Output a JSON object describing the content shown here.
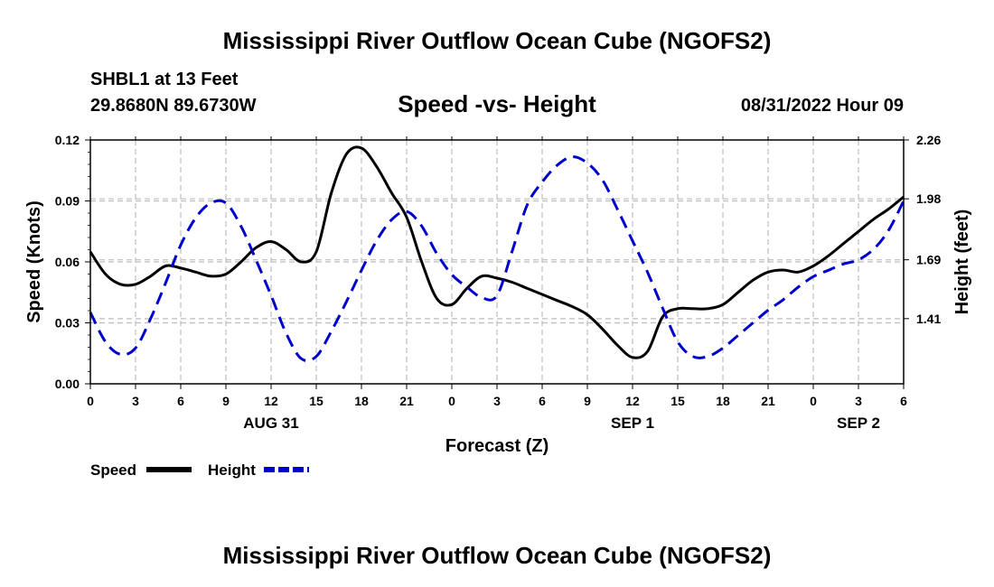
{
  "header": {
    "main_title": "Mississippi River Outflow Ocean Cube (NGOFS2)",
    "station": "SHBL1 at 13 Feet",
    "coords": "29.8680N  89.6730W",
    "subtitle": "Speed -vs- Height",
    "datetime": "08/31/2022 Hour 09"
  },
  "footer": {
    "main_title": "Mississippi River Outflow Ocean Cube (NGOFS2)"
  },
  "legend": {
    "items": [
      {
        "label": "Speed",
        "color": "#000000",
        "dashed": false
      },
      {
        "label": "Height",
        "color": "#0000cc",
        "dashed": true
      }
    ]
  },
  "chart_data": {
    "type": "line",
    "xlabel": "Forecast (Z)",
    "ylabel_left": "Speed (Knots)",
    "ylabel_right": "Height (feet)",
    "x_range_hours": [
      0,
      54
    ],
    "x_ticks": [
      {
        "h": 0,
        "label": "0"
      },
      {
        "h": 3,
        "label": "3"
      },
      {
        "h": 6,
        "label": "6"
      },
      {
        "h": 9,
        "label": "9"
      },
      {
        "h": 12,
        "label": "12"
      },
      {
        "h": 15,
        "label": "15"
      },
      {
        "h": 18,
        "label": "18"
      },
      {
        "h": 21,
        "label": "21"
      },
      {
        "h": 24,
        "label": "0"
      },
      {
        "h": 27,
        "label": "3"
      },
      {
        "h": 30,
        "label": "6"
      },
      {
        "h": 33,
        "label": "9"
      },
      {
        "h": 36,
        "label": "12"
      },
      {
        "h": 39,
        "label": "15"
      },
      {
        "h": 42,
        "label": "18"
      },
      {
        "h": 45,
        "label": "21"
      },
      {
        "h": 48,
        "label": "0"
      },
      {
        "h": 51,
        "label": "3"
      },
      {
        "h": 54,
        "label": "6"
      }
    ],
    "date_labels": [
      {
        "h": 12,
        "label": "AUG 31"
      },
      {
        "h": 36,
        "label": "SEP 1"
      },
      {
        "h": 51,
        "label": "SEP 2"
      }
    ],
    "y_left": {
      "min": 0,
      "max": 0.12,
      "ticks": [
        "0.00",
        "0.03",
        "0.06",
        "0.09",
        "0.12"
      ]
    },
    "y_right": {
      "min": 1.1,
      "max": 2.26,
      "ticks": [
        "1.41",
        "1.69",
        "1.98",
        "2.26"
      ]
    },
    "series": [
      {
        "name": "Speed",
        "axis": "left",
        "color": "#000000",
        "x": [
          0,
          1,
          2,
          3,
          4,
          5,
          6,
          7,
          8,
          9,
          10,
          11,
          12,
          13,
          14,
          15,
          16,
          17,
          18,
          19,
          20,
          21,
          22,
          23,
          24,
          25,
          26,
          27,
          28,
          29,
          30,
          31,
          32,
          33,
          34,
          35,
          36,
          37,
          38,
          39,
          40,
          41,
          42,
          43,
          44,
          45,
          46,
          47,
          48,
          49,
          50,
          51,
          52,
          53,
          54
        ],
        "values": [
          0.065,
          0.054,
          0.049,
          0.049,
          0.053,
          0.058,
          0.057,
          0.055,
          0.053,
          0.054,
          0.06,
          0.067,
          0.07,
          0.066,
          0.06,
          0.065,
          0.094,
          0.113,
          0.116,
          0.107,
          0.094,
          0.082,
          0.06,
          0.042,
          0.039,
          0.047,
          0.053,
          0.052,
          0.05,
          0.047,
          0.044,
          0.041,
          0.038,
          0.034,
          0.027,
          0.019,
          0.013,
          0.016,
          0.033,
          0.037,
          0.037,
          0.037,
          0.039,
          0.045,
          0.051,
          0.055,
          0.056,
          0.055,
          0.058,
          0.063,
          0.069,
          0.075,
          0.081,
          0.086,
          0.092
        ]
      },
      {
        "name": "Height",
        "axis": "right",
        "color": "#0000cc",
        "x": [
          0,
          1,
          2,
          3,
          4,
          5,
          6,
          7,
          8,
          9,
          10,
          11,
          12,
          13,
          14,
          15,
          16,
          17,
          18,
          19,
          20,
          21,
          22,
          23,
          24,
          25,
          26,
          27,
          28,
          29,
          30,
          31,
          32,
          33,
          34,
          35,
          36,
          37,
          38,
          39,
          40,
          41,
          42,
          43,
          44,
          45,
          46,
          47,
          48,
          49,
          50,
          51,
          52,
          53,
          54
        ],
        "values": [
          1.44,
          1.3,
          1.24,
          1.27,
          1.41,
          1.58,
          1.76,
          1.89,
          1.96,
          1.96,
          1.85,
          1.69,
          1.52,
          1.34,
          1.22,
          1.23,
          1.35,
          1.49,
          1.64,
          1.78,
          1.88,
          1.92,
          1.85,
          1.72,
          1.62,
          1.56,
          1.51,
          1.52,
          1.73,
          1.95,
          2.06,
          2.14,
          2.18,
          2.15,
          2.07,
          1.93,
          1.78,
          1.63,
          1.46,
          1.3,
          1.23,
          1.23,
          1.27,
          1.33,
          1.39,
          1.45,
          1.5,
          1.56,
          1.61,
          1.64,
          1.67,
          1.69,
          1.74,
          1.83,
          1.97
        ]
      }
    ]
  }
}
